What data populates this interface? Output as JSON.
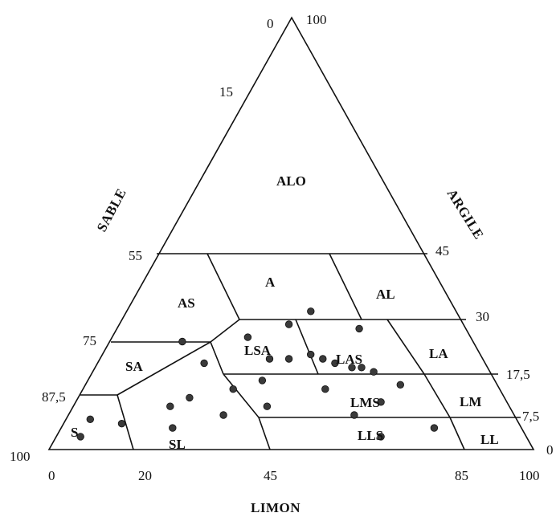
{
  "axes": {
    "left_title": "SABLE",
    "right_title": "ARGILE",
    "bottom_title": "LIMON"
  },
  "ticks": {
    "apex_left": "0",
    "apex_right": "100",
    "sable_15": "15",
    "sable_55": "55",
    "sable_75": "75",
    "sable_87_5": "87,5",
    "sable_100": "100",
    "argile_45": "45",
    "argile_30": "30",
    "argile_17_5": "17,5",
    "argile_7_5": "7,5",
    "argile_0": "0",
    "limon_0": "0",
    "limon_20": "20",
    "limon_45": "45",
    "limon_85": "85",
    "limon_100": "100"
  },
  "zones": {
    "alo": "ALO",
    "as": "AS",
    "a": "A",
    "al": "AL",
    "lsa": "LSA",
    "las": "LAS",
    "sa": "SA",
    "la": "LA",
    "lms": "LMS",
    "lm": "LM",
    "s": "S",
    "sl": "SL",
    "lls": "LLS",
    "ll": "LL"
  },
  "chart_data": {
    "type": "scatter",
    "xlabel": "LIMON",
    "axes": [
      "SABLE",
      "ARGILE",
      "LIMON"
    ],
    "clay_boundaries": [
      45,
      30,
      17.5,
      7.5
    ],
    "silt_ticks": [
      0,
      20,
      45,
      85,
      100
    ],
    "points": [
      {
        "sand": 60,
        "clay": 25,
        "silt": 15
      },
      {
        "sand": 58,
        "clay": 20,
        "silt": 22
      },
      {
        "sand": 46,
        "clay": 26,
        "silt": 28
      },
      {
        "sand": 36,
        "clay": 29,
        "silt": 35
      },
      {
        "sand": 30,
        "clay": 32,
        "silt": 38
      },
      {
        "sand": 22,
        "clay": 28,
        "silt": 50
      },
      {
        "sand": 44,
        "clay": 21,
        "silt": 35
      },
      {
        "sand": 40,
        "clay": 21,
        "silt": 39
      },
      {
        "sand": 35,
        "clay": 22,
        "silt": 43
      },
      {
        "sand": 33,
        "clay": 21,
        "silt": 46
      },
      {
        "sand": 31,
        "clay": 20,
        "silt": 49
      },
      {
        "sand": 28,
        "clay": 19,
        "silt": 53
      },
      {
        "sand": 26,
        "clay": 19,
        "silt": 55
      },
      {
        "sand": 24,
        "clay": 18,
        "silt": 58
      },
      {
        "sand": 20,
        "clay": 15,
        "silt": 65
      },
      {
        "sand": 18,
        "clay": 5,
        "silt": 77
      },
      {
        "sand": 36,
        "clay": 14,
        "silt": 50
      },
      {
        "sand": 33,
        "clay": 8,
        "silt": 59
      },
      {
        "sand": 30,
        "clay": 3,
        "silt": 67
      },
      {
        "sand": 26,
        "clay": 11,
        "silt": 63
      },
      {
        "sand": 72,
        "clay": 5,
        "silt": 23
      },
      {
        "sand": 82,
        "clay": 6,
        "silt": 12
      },
      {
        "sand": 92,
        "clay": 3,
        "silt": 5
      },
      {
        "sand": 88,
        "clay": 7,
        "silt": 5
      },
      {
        "sand": 70,
        "clay": 10,
        "silt": 20
      },
      {
        "sand": 65,
        "clay": 12,
        "silt": 23
      },
      {
        "sand": 60,
        "clay": 8,
        "silt": 32
      },
      {
        "sand": 55,
        "clay": 14,
        "silt": 31
      },
      {
        "sand": 50,
        "clay": 10,
        "silt": 40
      },
      {
        "sand": 48,
        "clay": 16,
        "silt": 36
      }
    ]
  }
}
